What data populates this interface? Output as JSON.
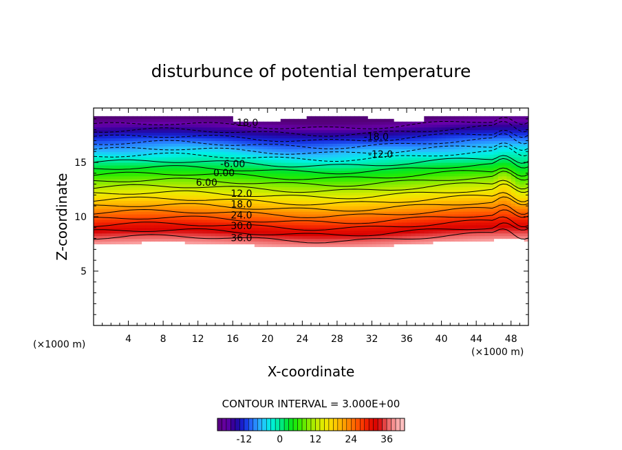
{
  "chart_data": {
    "type": "heatmap",
    "title": "disturbunce of potential temperature",
    "xlabel": "X-coordinate",
    "ylabel": "Z-coordinate",
    "x_unit": "(×1000 m)",
    "z_unit": "(×1000 m)",
    "xlim": [
      0,
      50
    ],
    "ylim": [
      0,
      20
    ],
    "x_ticks": [
      4,
      8,
      12,
      16,
      20,
      24,
      28,
      32,
      36,
      40,
      44,
      48
    ],
    "y_ticks": [
      5,
      10,
      15
    ],
    "contour_interval_text": "CONTOUR INTERVAL = 3.000E+00",
    "colorbar": {
      "min": -21,
      "max": 42,
      "ticks": [
        -12,
        0,
        12,
        24,
        36
      ]
    },
    "contour_labels": [
      {
        "text": "-18.0",
        "x": 17.5,
        "z": 18.6
      },
      {
        "text": "-18.0",
        "x": 32.5,
        "z": 17.3
      },
      {
        "text": "-12.0",
        "x": 33.0,
        "z": 15.7
      },
      {
        "text": "-6.00",
        "x": 16.0,
        "z": 14.8
      },
      {
        "text": "0.00",
        "x": 15.0,
        "z": 14.0
      },
      {
        "text": "6.00",
        "x": 13.0,
        "z": 13.1
      },
      {
        "text": "12.0",
        "x": 17.0,
        "z": 12.1
      },
      {
        "text": "18.0",
        "x": 17.0,
        "z": 11.1
      },
      {
        "text": "24.0",
        "x": 17.0,
        "z": 10.1
      },
      {
        "text": "30.0",
        "x": 17.0,
        "z": 9.1
      },
      {
        "text": "36.0",
        "x": 17.0,
        "z": 8.0
      }
    ],
    "field_description": {
      "lower_boundary_z": 7.5,
      "max_value": 39,
      "min_value": -21
    }
  }
}
